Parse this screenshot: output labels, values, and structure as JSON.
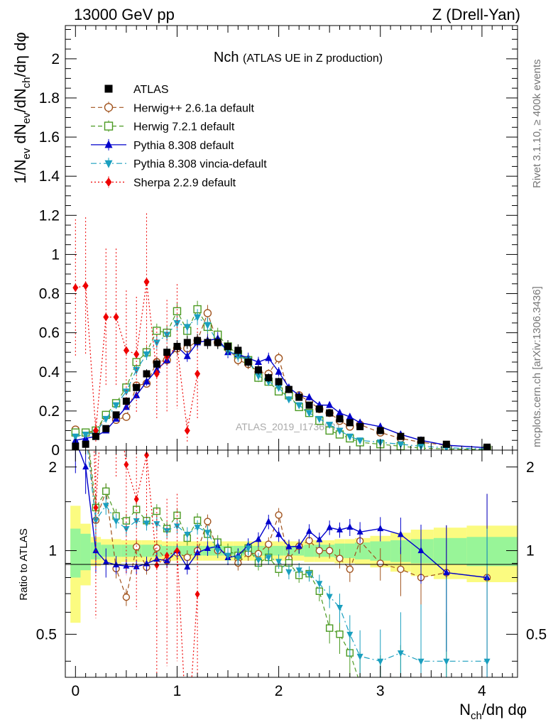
{
  "header": {
    "left": "13000 GeV pp",
    "right": "Z (Drell-Yan)"
  },
  "side": {
    "rivet": "Rivet 3.1.10, ≥ 400k events",
    "mcplots": "mcplots.cern.ch [arXiv:1306.3436]"
  },
  "colors": {
    "ATLAS": "#000000",
    "Herwig++ 2.6.1a default": "#a0521c",
    "Herwig 7.2.1 default": "#4b9a22",
    "Pythia 8.308 default": "#0000cc",
    "Pythia 8.308 vincia-default": "#1a9fbf",
    "Sherpa 2.2.9 default": "#ee0000",
    "band_inner": "#98f598",
    "band_outer": "#fbfb80"
  },
  "chart_data": {
    "type": "scatter",
    "title_main": "Nch",
    "title_sub": "(ATLAS UE in Z production)",
    "watermark": "ATLAS_2019_I1736531",
    "ylabel_top": "1/N_ev dN_ev/dN_ch/dη dφ",
    "ylabel_ratio": "Ratio to ATLAS",
    "xlabel": "N_ch/dη dφ",
    "xlim": [
      -0.1,
      4.35
    ],
    "ylim_top": [
      0,
      2.17
    ],
    "ylim_ratio": [
      0.35,
      2.3
    ],
    "xticks": [
      "0",
      "1",
      "2",
      "3",
      "4"
    ],
    "yticks_top": [
      "0",
      "0.2",
      "0.4",
      "0.6",
      "0.8",
      "1",
      "1.2",
      "1.4",
      "1.6",
      "1.8",
      "2"
    ],
    "yticks_ratio": [
      "0.5",
      "1",
      "2"
    ],
    "x": [
      0.0,
      0.1,
      0.2,
      0.3,
      0.4,
      0.5,
      0.6,
      0.7,
      0.8,
      0.9,
      1.0,
      1.1,
      1.2,
      1.3,
      1.4,
      1.5,
      1.6,
      1.7,
      1.8,
      1.9,
      2.0,
      2.1,
      2.2,
      2.3,
      2.4,
      2.5,
      2.6,
      2.7,
      2.8,
      3.0,
      3.2,
      3.4,
      3.65,
      4.05
    ],
    "series": [
      {
        "name": "ATLAS",
        "marker": "square",
        "line": "none",
        "values": [
          0.02,
          0.03,
          0.07,
          0.11,
          0.18,
          0.25,
          0.32,
          0.39,
          0.44,
          0.5,
          0.53,
          0.55,
          0.56,
          0.55,
          0.55,
          0.53,
          0.51,
          0.45,
          0.41,
          0.37,
          0.35,
          0.31,
          0.27,
          0.23,
          0.21,
          0.19,
          0.16,
          0.14,
          0.12,
          0.1,
          0.07,
          0.05,
          0.03,
          0.015
        ]
      },
      {
        "name": "Herwig++ 2.6.1a default",
        "marker": "circle-open",
        "line": "dashed",
        "values": [
          0.105,
          0.09,
          0.09,
          0.18,
          0.155,
          0.17,
          0.33,
          0.34,
          0.45,
          0.46,
          0.52,
          0.52,
          0.56,
          0.7,
          0.55,
          0.52,
          0.46,
          0.44,
          0.4,
          0.39,
          0.47,
          0.29,
          0.28,
          0.25,
          0.21,
          0.19,
          0.15,
          0.12,
          0.13,
          0.09,
          0.06,
          0.04,
          0.025,
          0.012
        ]
      },
      {
        "name": "Herwig 7.2.1 default",
        "marker": "square-open",
        "line": "dashed",
        "values": [
          0.09,
          0.09,
          0.1,
          0.18,
          0.24,
          0.32,
          0.45,
          0.5,
          0.61,
          0.6,
          0.71,
          0.61,
          0.72,
          0.63,
          0.59,
          0.53,
          0.49,
          0.46,
          0.37,
          0.35,
          0.3,
          0.28,
          0.22,
          0.19,
          0.15,
          0.1,
          0.08,
          0.06,
          0.04,
          0.03,
          0.02,
          0.01,
          0.006,
          0.003
        ]
      },
      {
        "name": "Pythia 8.308 default",
        "marker": "triangle-up",
        "line": "solid",
        "values": [
          0.05,
          0.06,
          0.07,
          0.1,
          0.16,
          0.22,
          0.28,
          0.35,
          0.41,
          0.46,
          0.53,
          0.48,
          0.55,
          0.56,
          0.57,
          0.5,
          0.49,
          0.47,
          0.45,
          0.47,
          0.4,
          0.32,
          0.28,
          0.27,
          0.23,
          0.23,
          0.19,
          0.17,
          0.14,
          0.12,
          0.08,
          0.05,
          0.025,
          0.012
        ]
      },
      {
        "name": "Pythia 8.308 vincia-default",
        "marker": "triangle-down",
        "line": "dashdot",
        "values": [
          0.07,
          0.08,
          0.09,
          0.16,
          0.23,
          0.3,
          0.41,
          0.49,
          0.55,
          0.59,
          0.65,
          0.63,
          0.68,
          0.64,
          0.55,
          0.51,
          0.48,
          0.46,
          0.38,
          0.35,
          0.32,
          0.26,
          0.23,
          0.19,
          0.16,
          0.13,
          0.1,
          0.07,
          0.05,
          0.04,
          0.03,
          0.02,
          0.012,
          0.006
        ]
      },
      {
        "name": "Sherpa 2.2.9 default",
        "marker": "diamond",
        "line": "dotted",
        "values": [
          0.83,
          0.84,
          0.1,
          0.68,
          0.68,
          0.51,
          0.49,
          0.86,
          0.39,
          0.48,
          0.53,
          0.1,
          0.39,
          null,
          null,
          null,
          null,
          null,
          null,
          null,
          null,
          null,
          null,
          null,
          null,
          null,
          null,
          null,
          null,
          null,
          null,
          null,
          null,
          null
        ]
      }
    ],
    "ratio": {
      "band_inner_halfwidth": [
        0.2,
        0.15,
        0.07,
        0.05,
        0.05,
        0.05,
        0.05,
        0.05,
        0.05,
        0.04,
        0.04,
        0.04,
        0.04,
        0.04,
        0.04,
        0.04,
        0.04,
        0.04,
        0.04,
        0.04,
        0.04,
        0.04,
        0.04,
        0.05,
        0.05,
        0.05,
        0.06,
        0.06,
        0.07,
        0.08,
        0.09,
        0.1,
        0.11,
        0.12
      ],
      "band_outer_halfwidth": [
        0.45,
        0.25,
        0.12,
        0.1,
        0.1,
        0.09,
        0.09,
        0.09,
        0.09,
        0.08,
        0.08,
        0.08,
        0.08,
        0.08,
        0.08,
        0.08,
        0.08,
        0.08,
        0.08,
        0.08,
        0.08,
        0.08,
        0.08,
        0.09,
        0.09,
        0.09,
        0.1,
        0.1,
        0.11,
        0.13,
        0.16,
        0.19,
        0.21,
        0.23
      ]
    }
  }
}
